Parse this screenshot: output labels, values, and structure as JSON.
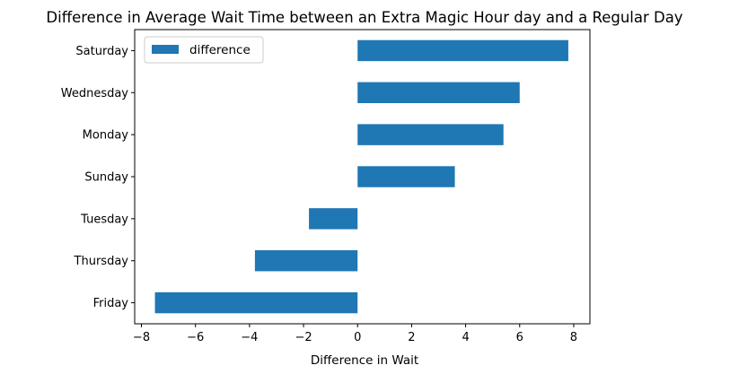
{
  "chart_data": {
    "type": "bar",
    "orientation": "horizontal",
    "title": "Difference in Average Wait Time between an Extra Magic Hour day and a Regular Day",
    "xlabel": "Difference in Wait",
    "ylabel": "",
    "categories": [
      "Saturday",
      "Wednesday",
      "Monday",
      "Sunday",
      "Tuesday",
      "Thursday",
      "Friday"
    ],
    "series": [
      {
        "name": "difference",
        "color": "#1f77b4",
        "values": [
          7.8,
          6.0,
          5.4,
          3.6,
          -1.8,
          -3.8,
          -7.5
        ]
      }
    ],
    "xlim": [
      -8.25,
      8.6
    ],
    "xticks": [
      -8,
      -6,
      -4,
      -2,
      0,
      2,
      4,
      6,
      8
    ],
    "xtick_labels": [
      "−8",
      "−6",
      "−4",
      "−2",
      "0",
      "2",
      "4",
      "6",
      "8"
    ],
    "grid": false,
    "legend": {
      "position": "top-left",
      "entries": [
        "difference"
      ]
    }
  }
}
